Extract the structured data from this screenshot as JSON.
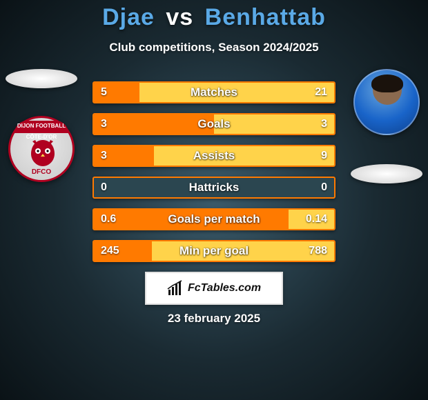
{
  "title": {
    "player1": "Djae",
    "vs": "vs",
    "player2": "Benhattab",
    "color_player1": "#5aa9e6",
    "color_vs": "#ffffff",
    "color_player2": "#5aa9e6"
  },
  "subtitle": "Club competitions, Season 2024/2025",
  "theme": {
    "accent_left": "#ff7a00",
    "accent_right": "#ffd34a",
    "bar_track": "#2b4650",
    "bar_border": "#ff7a00"
  },
  "left_side": {
    "kind": "logo",
    "logo_text": "DFCO",
    "logo_arc_text": "DIJON FOOTBALL CÔTE-D'OR"
  },
  "right_side": {
    "kind": "photo"
  },
  "bars": [
    {
      "label": "Matches",
      "left": "5",
      "right": "21",
      "left_ratio": 0.19,
      "right_ratio": 0.81
    },
    {
      "label": "Goals",
      "left": "3",
      "right": "3",
      "left_ratio": 0.5,
      "right_ratio": 0.5
    },
    {
      "label": "Assists",
      "left": "3",
      "right": "9",
      "left_ratio": 0.25,
      "right_ratio": 0.75
    },
    {
      "label": "Hattricks",
      "left": "0",
      "right": "0",
      "left_ratio": 0.0,
      "right_ratio": 0.0
    },
    {
      "label": "Goals per match",
      "left": "0.6",
      "right": "0.14",
      "left_ratio": 0.81,
      "right_ratio": 0.19
    },
    {
      "label": "Min per goal",
      "left": "245",
      "right": "788",
      "left_ratio": 0.24,
      "right_ratio": 0.76
    }
  ],
  "brand": "FcTables.com",
  "date": "23 february 2025"
}
